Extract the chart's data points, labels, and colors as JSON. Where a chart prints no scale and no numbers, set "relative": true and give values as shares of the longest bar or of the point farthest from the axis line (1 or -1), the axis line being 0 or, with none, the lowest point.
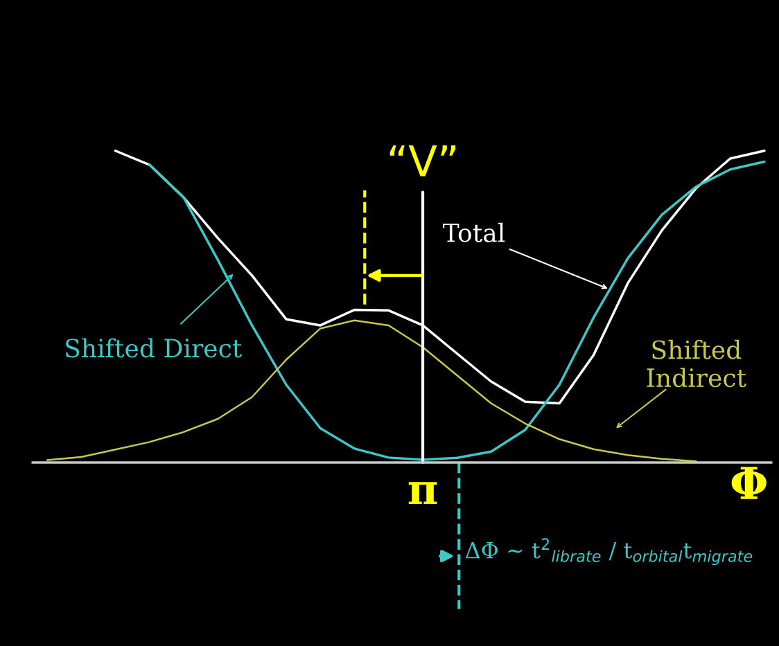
{
  "chart_data": {
    "type": "line",
    "relative": true,
    "xlabel": "Φ",
    "categories": [
      null,
      null,
      null,
      null,
      null,
      null,
      null,
      null,
      null,
      null,
      null,
      null,
      null,
      null,
      null,
      null,
      null,
      null,
      null,
      null,
      null,
      null
    ],
    "series": [
      {
        "color": "#ffffff",
        "values": [
          null,
          null,
          1.0,
          0.955,
          0.85,
          0.72,
          0.6,
          0.46,
          0.44,
          0.49,
          0.488,
          0.44,
          0.35,
          0.26,
          0.195,
          0.19,
          0.345,
          0.575,
          0.745,
          0.88,
          0.975,
          1.0
        ]
      },
      {
        "color": "#3cc8c8",
        "values": [
          null,
          null,
          null,
          0.955,
          0.85,
          0.65,
          0.44,
          0.25,
          0.11,
          0.045,
          0.016,
          0.009,
          0.015,
          0.035,
          0.105,
          0.25,
          0.465,
          0.655,
          0.795,
          0.885,
          0.94,
          0.965
        ]
      },
      {
        "color": "#c8c850",
        "values": [
          0.008,
          0.018,
          0.042,
          0.066,
          0.098,
          0.14,
          0.21,
          0.33,
          0.43,
          0.456,
          0.44,
          0.37,
          0.28,
          0.19,
          0.125,
          0.075,
          0.043,
          0.024,
          0.012,
          0.004,
          null,
          null
        ]
      }
    ],
    "annotations": [
      "π",
      "“V”",
      "Total",
      "Shifted Direct",
      "Shifted\nIndirect",
      "ΔΦ ∼ t$^{2}$$_{librate}$ / t$_{orbital}$t$_{migrate}$"
    ]
  }
}
